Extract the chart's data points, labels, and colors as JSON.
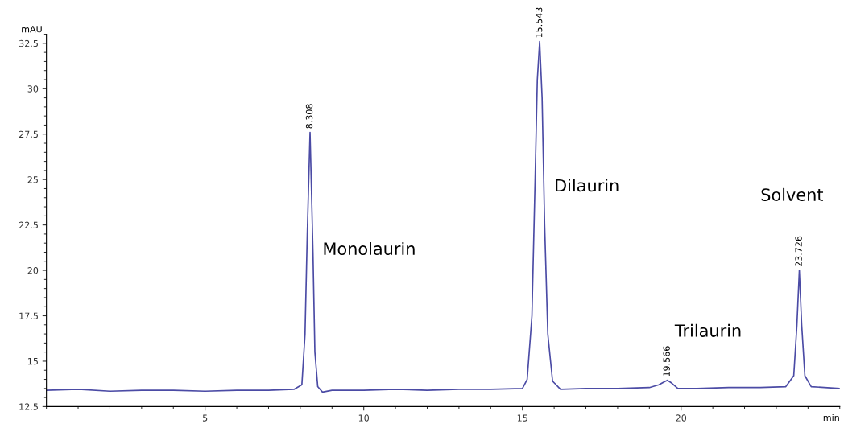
{
  "chart_data": {
    "type": "line",
    "xlabel": "min",
    "ylabel": "mAU",
    "x": [
      0,
      1,
      2,
      3,
      4,
      5,
      6,
      7,
      7.8,
      8.05,
      8.15,
      8.22,
      8.308,
      8.4,
      8.46,
      8.55,
      8.7,
      9,
      10,
      11,
      12,
      13,
      14,
      15,
      15.15,
      15.3,
      15.4,
      15.47,
      15.543,
      15.62,
      15.7,
      15.8,
      15.95,
      16.2,
      17,
      18,
      19,
      19.3,
      19.45,
      19.566,
      19.7,
      19.9,
      20.5,
      21.5,
      22.5,
      23.3,
      23.55,
      23.65,
      23.726,
      23.8,
      23.9,
      24.1,
      25
    ],
    "series": [
      {
        "color": "#4b4ba5",
        "values": [
          13.4,
          13.45,
          13.35,
          13.4,
          13.4,
          13.35,
          13.4,
          13.4,
          13.45,
          13.7,
          16.5,
          22,
          27.6,
          21,
          15.5,
          13.6,
          13.3,
          13.4,
          13.4,
          13.45,
          13.4,
          13.45,
          13.45,
          13.5,
          14.0,
          17.5,
          25,
          30.5,
          32.6,
          29.5,
          22.5,
          16.5,
          13.9,
          13.45,
          13.5,
          13.5,
          13.55,
          13.7,
          13.85,
          13.95,
          13.8,
          13.5,
          13.5,
          13.55,
          13.55,
          13.6,
          14.2,
          17,
          20,
          17,
          14.2,
          13.6,
          13.5
        ]
      }
    ],
    "xlim": [
      0,
      25
    ],
    "xticks": [
      5,
      10,
      15,
      20
    ],
    "ylim": [
      12.5,
      33
    ],
    "yticks": [
      12.5,
      15,
      17.5,
      20,
      22.5,
      25,
      27.5,
      30,
      32.5
    ],
    "grid": false,
    "legend": false,
    "marker": "none",
    "line_style": "solid",
    "annotations": [
      {
        "text": "8.308",
        "x": 8.308,
        "y": 27.6
      },
      {
        "text": "15.543",
        "x": 15.543,
        "y": 32.6
      },
      {
        "text": "19.566",
        "x": 19.566,
        "y": 13.95
      },
      {
        "text": "23.726",
        "x": 23.726,
        "y": 20
      },
      "Monolaurin",
      "Dilaurin",
      "Trilaurin",
      "Solvent"
    ]
  }
}
